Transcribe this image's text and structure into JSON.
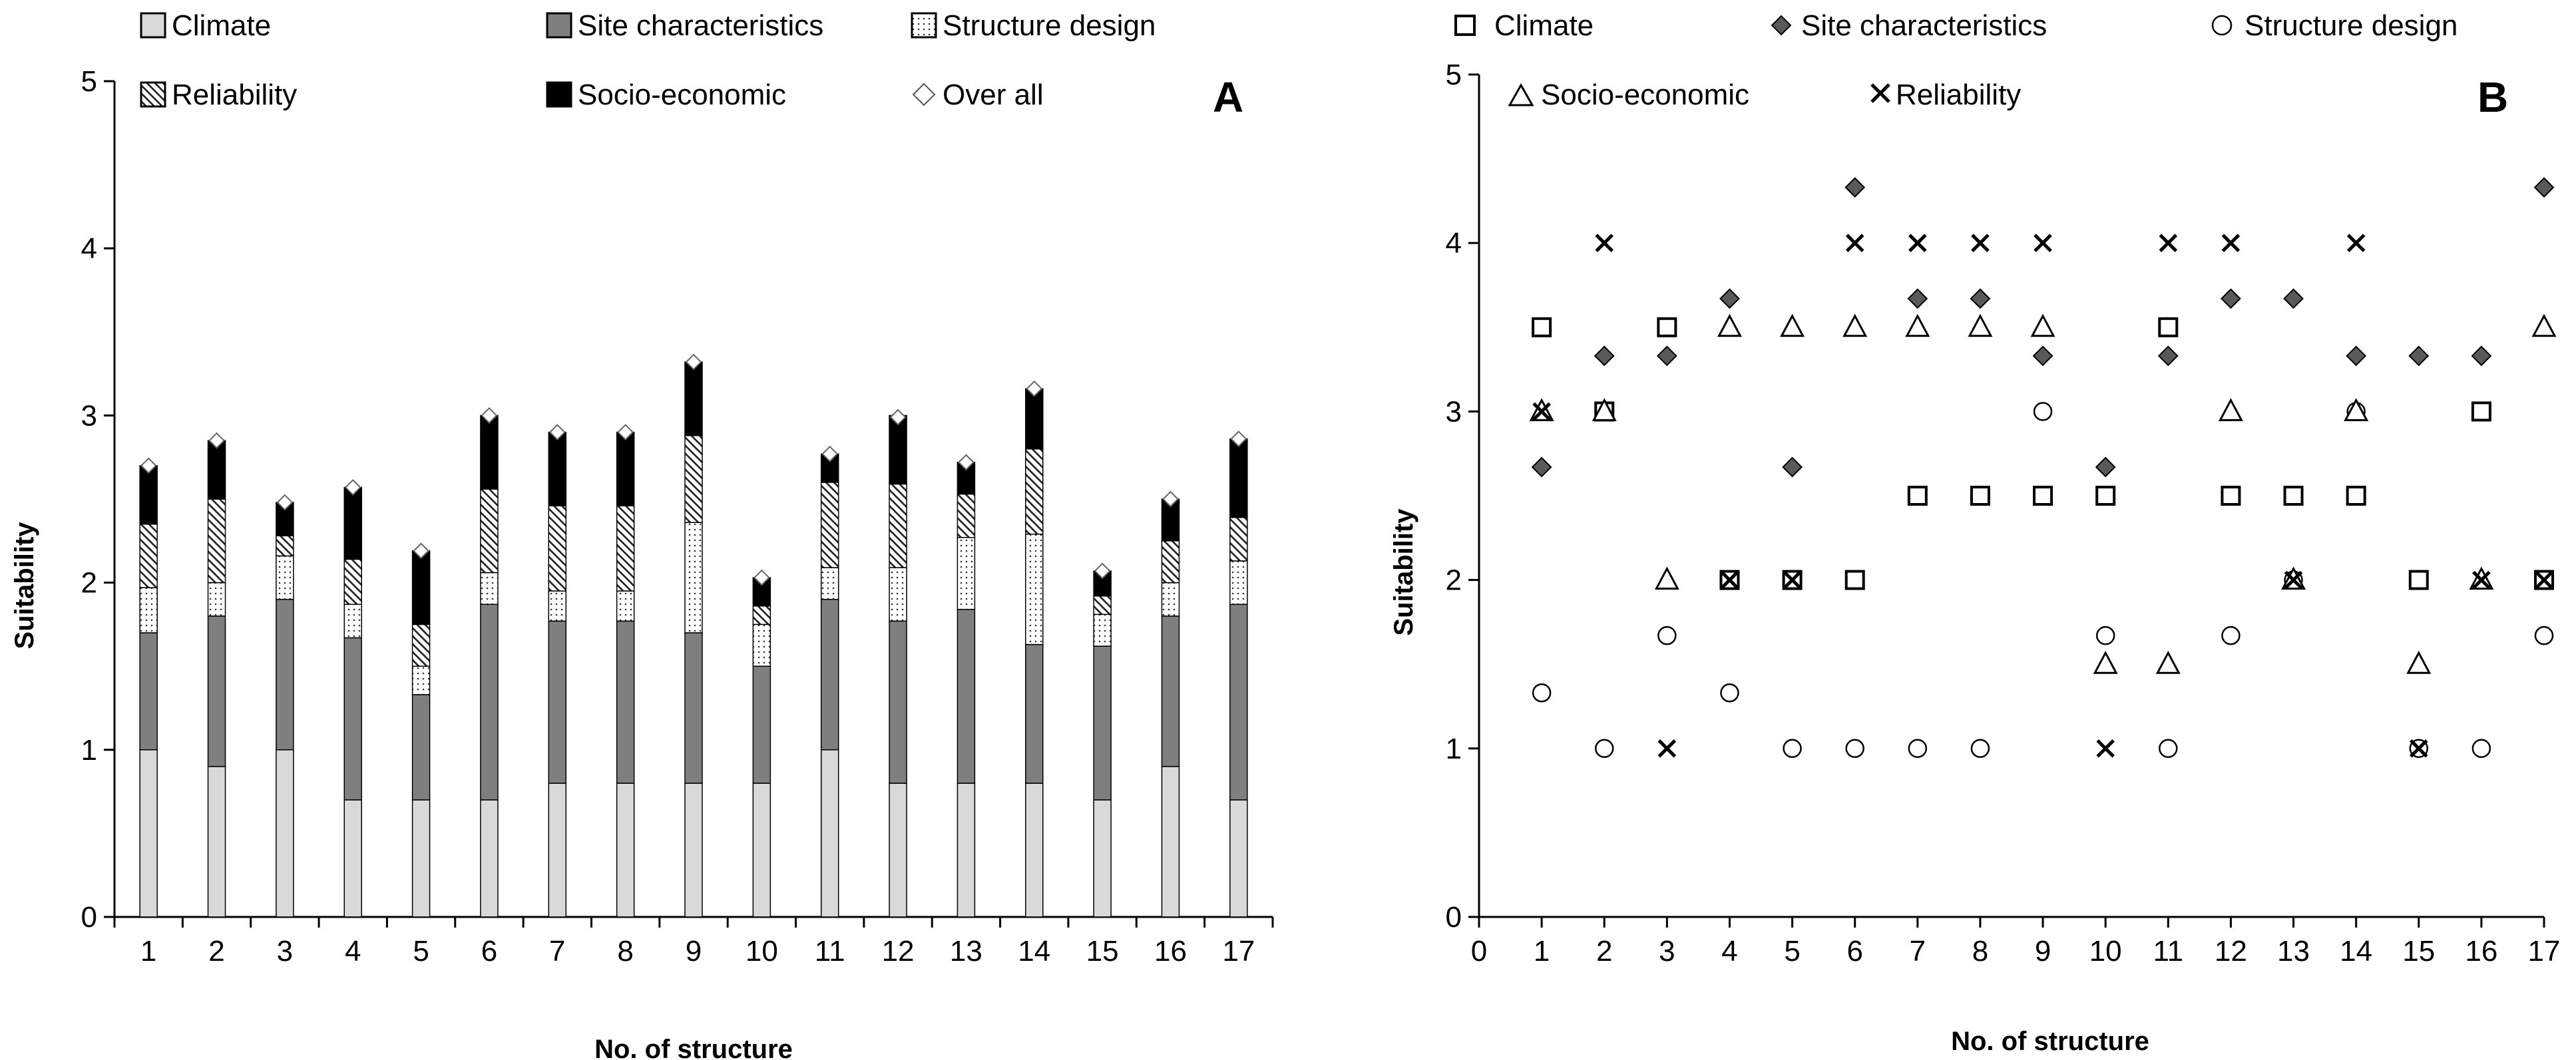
{
  "chart_data": [
    {
      "panel": "A",
      "type": "stacked-bar",
      "xlabel": "No. of structure",
      "ylabel": "Suitability",
      "ylim": [
        0,
        5
      ],
      "yticks": [
        "0",
        "1",
        "2",
        "3",
        "4",
        "5"
      ],
      "categories": [
        "1",
        "2",
        "3",
        "4",
        "5",
        "6",
        "7",
        "8",
        "9",
        "10",
        "11",
        "12",
        "13",
        "14",
        "15",
        "16",
        "17"
      ],
      "legend": [
        "Climate",
        "Site characteristics",
        "Structure design",
        "Reliability",
        "Socio-economic",
        "Over all"
      ],
      "series": [
        {
          "name": "Climate",
          "values": [
            1.0,
            0.9,
            1.0,
            0.7,
            0.7,
            0.7,
            0.8,
            0.8,
            0.8,
            0.8,
            1.0,
            0.8,
            0.8,
            0.8,
            0.7,
            0.9,
            0.7
          ]
        },
        {
          "name": "Site characteristics",
          "values": [
            0.7,
            0.9,
            0.9,
            0.97,
            0.63,
            1.17,
            0.97,
            0.97,
            0.9,
            0.7,
            0.9,
            0.97,
            1.04,
            0.83,
            0.92,
            0.9,
            1.17
          ]
        },
        {
          "name": "Structure design",
          "values": [
            0.27,
            0.2,
            0.26,
            0.2,
            0.17,
            0.19,
            0.18,
            0.18,
            0.66,
            0.25,
            0.19,
            0.32,
            0.43,
            0.66,
            0.19,
            0.2,
            0.26
          ]
        },
        {
          "name": "Reliability",
          "values": [
            0.38,
            0.5,
            0.12,
            0.27,
            0.25,
            0.5,
            0.51,
            0.51,
            0.52,
            0.11,
            0.51,
            0.5,
            0.26,
            0.51,
            0.11,
            0.25,
            0.26
          ]
        },
        {
          "name": "Socio-economic",
          "values": [
            0.35,
            0.35,
            0.2,
            0.43,
            0.44,
            0.44,
            0.44,
            0.44,
            0.44,
            0.17,
            0.17,
            0.41,
            0.19,
            0.36,
            0.15,
            0.25,
            0.47
          ]
        }
      ],
      "overall": [
        2.7,
        2.85,
        2.48,
        2.57,
        2.19,
        3.0,
        2.9,
        2.9,
        3.32,
        2.03,
        2.77,
        2.99,
        2.72,
        3.16,
        2.07,
        2.5,
        2.86
      ]
    },
    {
      "panel": "B",
      "type": "scatter",
      "xlabel": "No. of structure",
      "ylabel": "Suitability",
      "xlim": [
        0,
        17
      ],
      "ylim": [
        0,
        5
      ],
      "xticks": [
        "0",
        "1",
        "2",
        "3",
        "4",
        "5",
        "6",
        "7",
        "8",
        "9",
        "10",
        "11",
        "12",
        "13",
        "14",
        "15",
        "16",
        "17"
      ],
      "yticks": [
        "0",
        "1",
        "2",
        "3",
        "4",
        "5"
      ],
      "legend": [
        "Climate",
        "Site characteristics",
        "Structure design",
        "Socio-economic",
        "Reliability"
      ],
      "series": [
        {
          "name": "Climate",
          "marker": "square",
          "values": [
            3.5,
            3,
            3.5,
            2,
            2,
            2,
            2.5,
            2.5,
            2.5,
            2.5,
            3.5,
            2.5,
            2.5,
            2.5,
            2,
            3,
            2
          ]
        },
        {
          "name": "Site characteristics",
          "marker": "diamond",
          "values": [
            2.67,
            3.33,
            3.33,
            3.67,
            2.67,
            4.33,
            3.67,
            3.67,
            3.33,
            2.67,
            3.33,
            3.67,
            3.67,
            3.33,
            3.33,
            3.33,
            4.33
          ]
        },
        {
          "name": "Structure design",
          "marker": "circle",
          "values": [
            1.33,
            1,
            1.67,
            1.33,
            1,
            1,
            1,
            1,
            3,
            1.67,
            1,
            1.67,
            2,
            3,
            1,
            1,
            1.67
          ]
        },
        {
          "name": "Socio-economic",
          "marker": "triangle",
          "values": [
            3,
            3,
            2,
            3.5,
            3.5,
            3.5,
            3.5,
            3.5,
            3.5,
            1.5,
            1.5,
            3,
            2,
            3,
            1.5,
            2,
            3.5
          ]
        },
        {
          "name": "Reliability",
          "marker": "x",
          "values": [
            3,
            4,
            1,
            2,
            2,
            4,
            4,
            4,
            4,
            1,
            4,
            4,
            2,
            4,
            1,
            2,
            2
          ]
        }
      ]
    }
  ]
}
